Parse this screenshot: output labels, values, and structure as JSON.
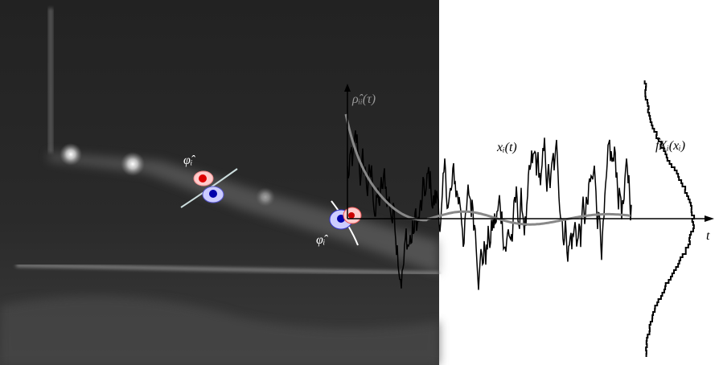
{
  "labels": {
    "phi_upper": "φ̂ᵢ",
    "phi_lower": "φ̂ᵢ",
    "autocorrelation": "ρ̂ᵢᵢ(τ)",
    "signal": "xᵢ(t)",
    "pdf": "f̂Xᵢ(xᵢ)",
    "time_axis": "t"
  }
}
